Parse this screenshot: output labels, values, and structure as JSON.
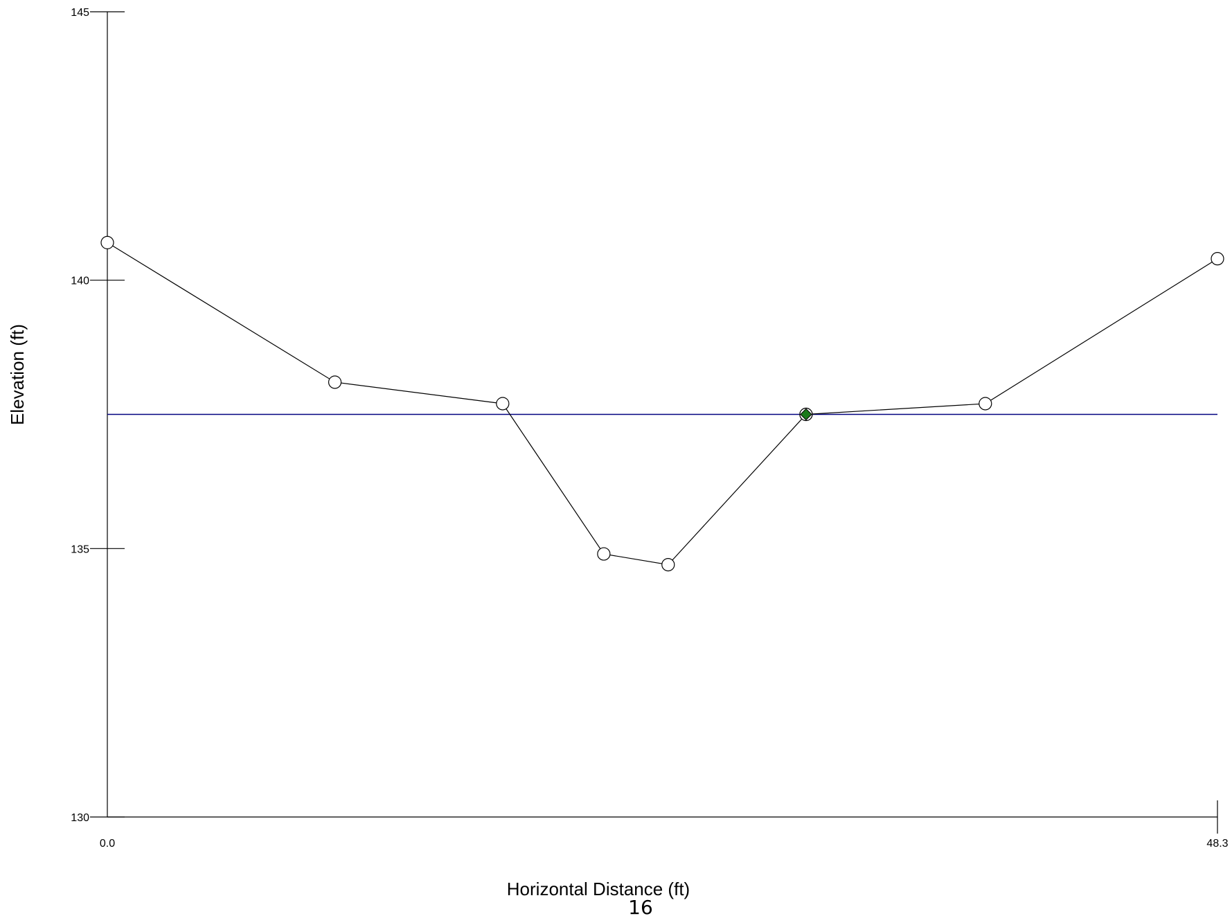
{
  "chart_data": {
    "type": "line",
    "xlabel": "Horizontal Distance (ft)",
    "ylabel": "Elevation (ft)",
    "xlim": [
      0.0,
      48.3
    ],
    "ylim": [
      130,
      145
    ],
    "x_tick_labels": [
      "0.0",
      "48.3"
    ],
    "y_tick_labels": [
      "130",
      "135",
      "140",
      "145"
    ],
    "y_ticks": [
      130,
      135,
      140,
      145
    ],
    "series": [
      {
        "marker": "open-circle",
        "color": "#000000",
        "points": [
          {
            "x": 0.0,
            "y": 140.7
          },
          {
            "x": 9.9,
            "y": 138.1
          },
          {
            "x": 17.2,
            "y": 137.7
          },
          {
            "x": 21.6,
            "y": 134.9
          },
          {
            "x": 24.4,
            "y": 134.7
          },
          {
            "x": 30.4,
            "y": 137.5
          },
          {
            "x": 38.2,
            "y": 137.7
          },
          {
            "x": 48.3,
            "y": 140.4
          }
        ]
      }
    ],
    "water_surface": {
      "y": 137.5,
      "color": "#00007f"
    },
    "highlight_point": {
      "x": 30.4,
      "y": 137.5,
      "color": "#1a7a1a"
    }
  },
  "page_number": "16"
}
